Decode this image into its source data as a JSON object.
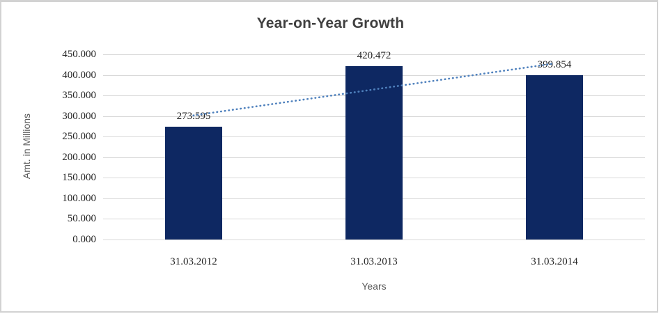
{
  "chart_data": {
    "type": "bar",
    "title": "Year-on-Year Growth",
    "categories": [
      "31.03.2012",
      "31.03.2013",
      "31.03.2014"
    ],
    "values": [
      273.595,
      420.472,
      399.854
    ],
    "value_labels": [
      "273.595",
      "420.472",
      "399.854"
    ],
    "xlabel": "Years",
    "ylabel": "Amt. in Millions",
    "ylim": [
      0,
      450
    ],
    "ytick_step": 50,
    "ytick_labels": [
      "0.000",
      "50.000",
      "100.000",
      "150.000",
      "200.000",
      "250.000",
      "300.000",
      "350.000",
      "400.000",
      "450.000"
    ],
    "grid": true,
    "legend": "none",
    "colors": {
      "bar": "#0e2862",
      "trendline": "#4f81bd",
      "gridline": "#d9d9d9",
      "title_text": "#3f3f3f",
      "tick_text": "#262626",
      "axis_title_text": "#595959",
      "frame_border": "#d2d2d2"
    },
    "trendline": {
      "type": "linear",
      "style": "dotted"
    }
  }
}
